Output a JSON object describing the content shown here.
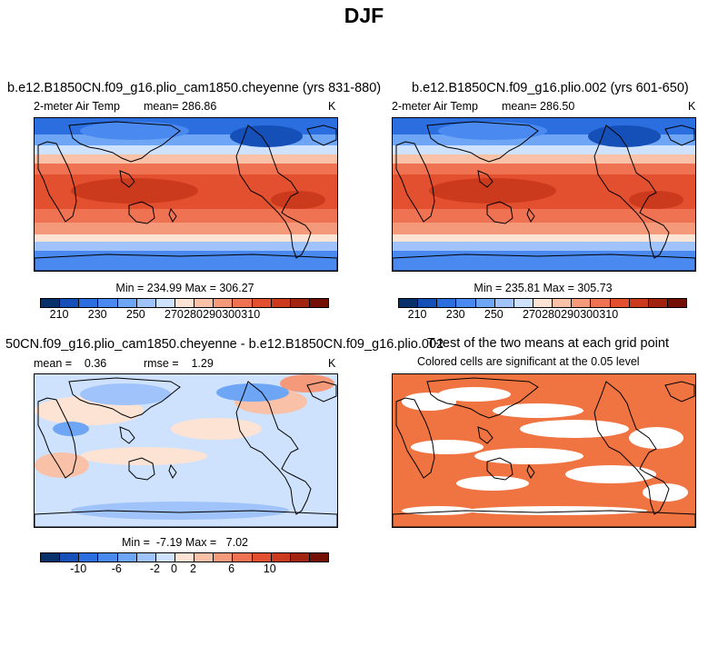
{
  "title": "DJF",
  "panels": [
    {
      "title": "b.e12.B1850CN.f09_g16.plio_cam1850.cheyenne (yrs 831-880)",
      "variable": "2-meter Air Temp",
      "mean_text": "mean= 286.86",
      "units": "K",
      "min_max_text": "Min = 234.99 Max = 306.27",
      "colorbar_labels": [
        "210",
        "230",
        "250",
        "270",
        "280",
        "290",
        "300",
        "310"
      ]
    },
    {
      "title": "b.e12.B1850CN.f09_g16.plio.002 (yrs 601-650)",
      "variable": "2-meter Air Temp",
      "mean_text": "mean= 286.50",
      "units": "K",
      "min_max_text": "Min = 235.81 Max = 305.73",
      "colorbar_labels": [
        "210",
        "230",
        "250",
        "270",
        "280",
        "290",
        "300",
        "310"
      ]
    },
    {
      "title": "50CN.f09_g16.plio_cam1850.cheyenne - b.e12.B1850CN.f09_g16.plio.002",
      "mean_text": "mean =    0.36",
      "rmse_text": "rmse =    1.29",
      "units": "K",
      "min_max_text": "Min =  -7.19 Max =   7.02",
      "colorbar_labels": [
        "-10",
        "-6",
        "-2",
        "0",
        "2",
        "6",
        "10"
      ]
    },
    {
      "title": "T-test of the two means at each grid point",
      "subtitle": "Colored cells are significant at the 0.05 level"
    }
  ],
  "colors": {
    "colorbar": [
      "#08306b",
      "#1550b8",
      "#2b6ee0",
      "#4a8af0",
      "#6fa5f5",
      "#9fc3fa",
      "#cfe2fd",
      "#fde3d4",
      "#f9c2a8",
      "#f49a7a",
      "#ef7352",
      "#e3502f",
      "#cc3a1e",
      "#a12310",
      "#730f05"
    ],
    "significance": "#f07442"
  }
}
